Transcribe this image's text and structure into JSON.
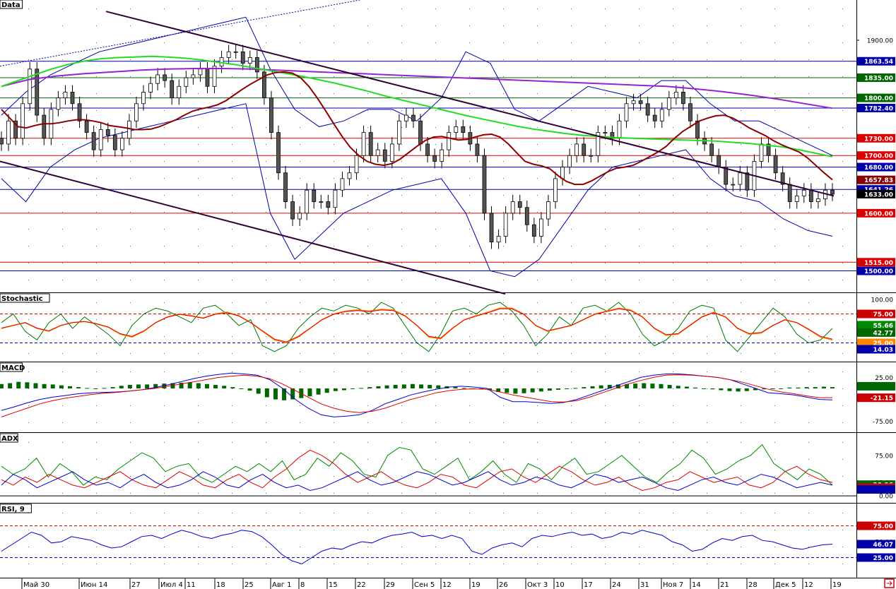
{
  "colors": {
    "up": "#ffffff",
    "down": "#555555",
    "bb": "#0000aa",
    "ma_fast": "#8b0000",
    "ma_mid": "#22dd22",
    "ma_slow": "#9922cc",
    "trend": "#330033",
    "hline_blue": "#0000aa",
    "hline_red": "#dd0000",
    "hline_green": "#006600",
    "k": "#007700",
    "d": "#ff8800",
    "macd": "#0000cc",
    "signal": "#dd0000",
    "hist": "#006600"
  },
  "x_ticks": [
    "Май 30",
    "Июн 14",
    "27",
    "Июл 4",
    "11",
    "18",
    "25",
    "Авг 1",
    "8",
    "15",
    "22",
    "29",
    "Сен 5",
    "12",
    "19",
    "26",
    "Окт 3",
    "10",
    "17",
    "24",
    "31",
    "Ноя 7",
    "14",
    "21",
    "28",
    "Дек 5",
    "12",
    "19"
  ],
  "chart_data": [
    {
      "type": "candlestick",
      "panel": "Data",
      "title": "Data",
      "ylim": [
        1470,
        1960
      ],
      "yticks": [
        1900
      ],
      "hlines": [
        {
          "value": 1863.54,
          "label": "1863.54",
          "color": "blue"
        },
        {
          "value": 1835,
          "label": "1835.00",
          "color": "green"
        },
        {
          "value": 1800,
          "label": "1800.00",
          "color": "green"
        },
        {
          "value": 1782.4,
          "label": "1782.40",
          "color": "blue"
        },
        {
          "value": 1730,
          "label": "1730.00",
          "color": "red"
        },
        {
          "value": 1700,
          "label": "1700.00",
          "color": "red"
        },
        {
          "value": 1680,
          "label": "1680.00",
          "color": "blue"
        },
        {
          "value": 1641.26,
          "label": "1641.26",
          "color": "blue"
        },
        {
          "value": 1600,
          "label": "1600.00",
          "color": "red"
        },
        {
          "value": 1515,
          "label": "1515.00",
          "color": "red"
        },
        {
          "value": 1500,
          "label": "1500.00",
          "color": "blue"
        }
      ],
      "tags": [
        {
          "value": 1657.83,
          "label": "1657.83",
          "bg": "#8b0000"
        },
        {
          "value": 1633,
          "label": "1633.00",
          "bg": "#000000"
        }
      ],
      "closes": [
        1720,
        1760,
        1730,
        1790,
        1850,
        1770,
        1730,
        1780,
        1800,
        1810,
        1790,
        1760,
        1740,
        1710,
        1745,
        1735,
        1710,
        1730,
        1760,
        1790,
        1810,
        1825,
        1840,
        1830,
        1800,
        1820,
        1835,
        1840,
        1850,
        1820,
        1855,
        1870,
        1880,
        1880,
        1860,
        1870,
        1845,
        1800,
        1740,
        1670,
        1620,
        1590,
        1600,
        1640,
        1620,
        1620,
        1610,
        1640,
        1660,
        1670,
        1700,
        1740,
        1700,
        1710,
        1690,
        1720,
        1760,
        1770,
        1760,
        1720,
        1700,
        1690,
        1710,
        1740,
        1750,
        1740,
        1720,
        1700,
        1600,
        1550,
        1560,
        1600,
        1620,
        1610,
        1580,
        1560,
        1590,
        1620,
        1660,
        1680,
        1700,
        1720,
        1700,
        1700,
        1740,
        1740,
        1730,
        1760,
        1790,
        1795,
        1790,
        1770,
        1760,
        1780,
        1800,
        1810,
        1790,
        1760,
        1730,
        1720,
        1700,
        1680,
        1650,
        1650,
        1670,
        1640,
        1690,
        1720,
        1700,
        1670,
        1650,
        1620,
        1630,
        1640,
        1620,
        1625,
        1640,
        1633
      ],
      "ma_fast": [
        1780,
        1765,
        1750,
        1748,
        1752,
        1755,
        1755,
        1757,
        1760,
        1762,
        1762,
        1760,
        1757,
        1752,
        1750,
        1748,
        1745,
        1745,
        1746,
        1750,
        1756,
        1762,
        1770,
        1777,
        1781,
        1784,
        1788,
        1795,
        1805,
        1815,
        1824,
        1832,
        1840,
        1844,
        1845,
        1843,
        1835,
        1820,
        1800,
        1778,
        1755,
        1733,
        1714,
        1700,
        1690,
        1685,
        1683,
        1686,
        1694,
        1705,
        1716,
        1726,
        1732,
        1733,
        1730,
        1727,
        1728,
        1732,
        1736,
        1737,
        1732,
        1720,
        1705,
        1690,
        1685,
        1682,
        1677,
        1665,
        1655,
        1650,
        1650,
        1656,
        1664,
        1672,
        1678,
        1680,
        1683,
        1690,
        1698,
        1706,
        1716,
        1730,
        1742,
        1751,
        1760,
        1765,
        1769,
        1770,
        1765,
        1757,
        1748,
        1741,
        1734,
        1725,
        1718,
        1712,
        1706,
        1696,
        1683,
        1670,
        1658
      ],
      "ma_mid": [
        1820,
        1830,
        1840,
        1850,
        1858,
        1864,
        1868,
        1870,
        1871,
        1872,
        1871,
        1869,
        1866,
        1862,
        1858,
        1853,
        1848,
        1843,
        1838,
        1832,
        1826,
        1819,
        1812,
        1804,
        1797,
        1790,
        1783,
        1776,
        1769,
        1763,
        1757,
        1751,
        1746,
        1742,
        1738,
        1735,
        1733,
        1731,
        1730,
        1729,
        1728,
        1727,
        1726,
        1725,
        1723,
        1721,
        1718,
        1715,
        1710,
        1704,
        1698
      ],
      "ma_slow": [
        1820,
        1832,
        1838,
        1842,
        1845,
        1848,
        1850,
        1851,
        1851,
        1850,
        1848,
        1846,
        1844,
        1842,
        1840,
        1838,
        1836,
        1834,
        1832,
        1830,
        1828,
        1826,
        1824,
        1822,
        1820,
        1816,
        1811,
        1805,
        1798,
        1790,
        1782
      ],
      "bb_upper": [
        1770,
        1810,
        1840,
        1860,
        1880,
        1890,
        1900,
        1910,
        1920,
        1930,
        1940,
        1850,
        1780,
        1750,
        1760,
        1780,
        1780,
        1760,
        1800,
        1880,
        1860,
        1780,
        1760,
        1790,
        1820,
        1810,
        1800,
        1830,
        1830,
        1790,
        1760,
        1760,
        1740,
        1720,
        1700
      ],
      "bb_lower": [
        1660,
        1620,
        1680,
        1710,
        1730,
        1740,
        1750,
        1760,
        1770,
        1780,
        1790,
        1600,
        1520,
        1560,
        1600,
        1620,
        1640,
        1650,
        1660,
        1600,
        1500,
        1490,
        1520,
        1580,
        1640,
        1680,
        1690,
        1700,
        1710,
        1660,
        1630,
        1620,
        1590,
        1570,
        1560
      ],
      "trend_upper": [
        1950,
        1630
      ],
      "trend_lower": [
        1690,
        1460
      ]
    },
    {
      "type": "line",
      "panel": "Stochastic",
      "title": "Stochastic",
      "ylim": [
        0,
        100
      ],
      "yticks": [
        100
      ],
      "levels": [
        {
          "value": 75,
          "color": "red"
        },
        {
          "value": 25,
          "color": "blue"
        }
      ],
      "tags": [
        {
          "value": 75,
          "label": "75.00",
          "bg": "#cc0000"
        },
        {
          "value": 55.6,
          "label": "55.66",
          "bg": "#008800"
        },
        {
          "value": 42.77,
          "label": "42.77",
          "bg": "#006600"
        },
        {
          "value": 25,
          "label": "25.00",
          "bg": "#ff8800"
        },
        {
          "value": 14,
          "label": "14.03",
          "bg": "#0000aa"
        }
      ],
      "k": [
        60,
        75,
        45,
        30,
        60,
        75,
        50,
        70,
        55,
        40,
        20,
        55,
        75,
        85,
        80,
        70,
        60,
        85,
        90,
        75,
        55,
        65,
        20,
        10,
        20,
        50,
        70,
        85,
        80,
        90,
        85,
        75,
        95,
        85,
        55,
        25,
        10,
        40,
        80,
        85,
        75,
        90,
        95,
        80,
        55,
        20,
        40,
        70,
        55,
        85,
        90,
        80,
        95,
        75,
        40,
        20,
        30,
        50,
        80,
        90,
        85,
        30,
        10,
        35,
        60,
        85,
        70,
        40,
        25,
        30,
        50
      ],
      "d": [
        50,
        55,
        60,
        50,
        45,
        55,
        60,
        62,
        58,
        52,
        40,
        35,
        45,
        60,
        70,
        75,
        72,
        68,
        75,
        78,
        72,
        60,
        45,
        30,
        25,
        35,
        50,
        65,
        75,
        80,
        82,
        80,
        83,
        82,
        72,
        55,
        35,
        32,
        50,
        65,
        72,
        78,
        85,
        85,
        75,
        55,
        45,
        50,
        55,
        65,
        75,
        80,
        85,
        82,
        70,
        50,
        38,
        40,
        55,
        70,
        78,
        70,
        50,
        40,
        42,
        55,
        65,
        60,
        48,
        35,
        30
      ]
    },
    {
      "type": "bar",
      "panel": "MACD",
      "title": "MACD",
      "ylim": [
        -90,
        45
      ],
      "yticks": [
        25,
        -75
      ],
      "tags": [
        {
          "value": -21.15,
          "label": "-21.15",
          "bg": "#cc0000"
        },
        {
          "value": 5,
          "label": "",
          "bg": "#006600"
        }
      ],
      "hist": [
        10,
        12,
        15,
        14,
        12,
        10,
        9,
        7,
        5,
        3,
        1,
        -1,
        1,
        3,
        6,
        8,
        9,
        9,
        10,
        11,
        12,
        13,
        14,
        12,
        10,
        8,
        6,
        3,
        -1,
        -5,
        -12,
        -20,
        -25,
        -27,
        -25,
        -22,
        -18,
        -14,
        -10,
        -6,
        -4,
        -1,
        1,
        3,
        5,
        7,
        8,
        9,
        10,
        9,
        8,
        7,
        5,
        3,
        1,
        0,
        -1,
        -4,
        -8,
        -10,
        -12,
        -11,
        -9,
        -7,
        -5,
        -3,
        -1,
        1,
        3,
        5,
        7,
        8,
        9,
        10,
        11,
        12,
        11,
        10,
        8,
        6,
        4,
        2,
        0,
        -2,
        -4,
        -6,
        -7,
        -6,
        -4,
        -2,
        -1,
        0,
        2,
        2,
        3,
        3,
        4,
        3
      ],
      "macd": [
        -50,
        -42,
        -33,
        -25,
        -20,
        -16,
        -12,
        -10,
        -9,
        -8,
        -6,
        -3,
        2,
        8,
        15,
        22,
        28,
        32,
        35,
        33,
        30,
        20,
        0,
        -25,
        -45,
        -60,
        -65,
        -63,
        -60,
        -50,
        -35,
        -25,
        -15,
        -8,
        -2,
        3,
        5,
        3,
        0,
        -20,
        -30,
        -30,
        -32,
        -34,
        -32,
        -25,
        -15,
        -5,
        5,
        15,
        25,
        30,
        33,
        33,
        31,
        28,
        25,
        20,
        10,
        0,
        -10,
        -12,
        -15,
        -20,
        -25,
        -26
      ],
      "signal": [
        -65,
        -55,
        -45,
        -35,
        -28,
        -22,
        -18,
        -14,
        -11,
        -9,
        -6,
        -3,
        0,
        5,
        10,
        15,
        20,
        25,
        28,
        30,
        28,
        22,
        10,
        -5,
        -20,
        -35,
        -45,
        -52,
        -55,
        -52,
        -45,
        -35,
        -25,
        -18,
        -10,
        -5,
        -2,
        -1,
        -2,
        -8,
        -15,
        -20,
        -25,
        -30,
        -31,
        -28,
        -20,
        -10,
        0,
        10,
        18,
        25,
        30,
        31,
        30,
        28,
        25,
        20,
        14,
        6,
        -2,
        -8,
        -12,
        -17,
        -21,
        -21
      ]
    },
    {
      "type": "line",
      "panel": "ADX",
      "title": "ADX",
      "ylim": [
        -5,
        105
      ],
      "yticks": [
        75,
        25,
        0
      ],
      "tags": [
        {
          "value": 20.96,
          "label": "20.96",
          "bg": "#006600"
        },
        {
          "value": 15.4,
          "label": "",
          "bg": "#cc0000"
        },
        {
          "value": 12,
          "label": "",
          "bg": "#0000aa"
        }
      ],
      "adx": [
        55,
        40,
        50,
        70,
        35,
        60,
        45,
        20,
        35,
        30,
        50,
        65,
        80,
        70,
        45,
        55,
        60,
        35,
        25,
        40,
        55,
        45,
        60,
        45,
        65,
        30,
        40,
        70,
        55,
        80,
        65,
        40,
        35,
        75,
        90,
        85,
        50,
        40,
        55,
        70,
        30,
        45,
        65,
        40,
        25,
        60,
        50,
        30,
        55,
        70,
        40,
        45,
        60,
        75,
        55,
        35,
        25,
        45,
        60,
        85,
        70,
        40,
        50,
        65,
        75,
        95,
        60,
        45,
        30,
        50,
        40,
        20
      ],
      "pdi": [
        30,
        20,
        35,
        25,
        40,
        30,
        20,
        15,
        25,
        35,
        45,
        30,
        20,
        15,
        30,
        45,
        35,
        20,
        15,
        30,
        40,
        25,
        15,
        35,
        50,
        70,
        85,
        75,
        60,
        40,
        25,
        35,
        45,
        30,
        20,
        15,
        25,
        40,
        35,
        20,
        15,
        30,
        45,
        50,
        35,
        25,
        40,
        55,
        45,
        30,
        20,
        25,
        35,
        20,
        10,
        15,
        25,
        30,
        45,
        35,
        25,
        30,
        35,
        20,
        15,
        25,
        45,
        55,
        40,
        30,
        25
      ],
      "mdi": [
        20,
        40,
        30,
        15,
        25,
        35,
        45,
        30,
        20,
        25,
        15,
        30,
        40,
        25,
        15,
        20,
        30,
        45,
        35,
        20,
        15,
        30,
        40,
        25,
        15,
        20,
        10,
        15,
        25,
        35,
        45,
        30,
        20,
        25,
        35,
        45,
        40,
        30,
        20,
        25,
        35,
        45,
        30,
        20,
        25,
        35,
        30,
        20,
        15,
        25,
        40,
        35,
        25,
        30,
        35,
        25,
        15,
        10,
        20,
        30,
        35,
        25,
        20,
        30,
        40,
        35,
        25,
        15,
        20,
        25,
        20
      ]
    },
    {
      "type": "line",
      "panel": "RSI, 9",
      "title": "RSI, 9",
      "ylim": [
        0,
        100
      ],
      "yticks": [
        50
      ],
      "levels": [
        {
          "value": 75,
          "color": "red"
        },
        {
          "value": 25,
          "color": "blue"
        }
      ],
      "tags": [
        {
          "value": 75,
          "label": "75.00",
          "bg": "#cc0000"
        },
        {
          "value": 46.07,
          "label": "46.07",
          "bg": "#0000aa"
        },
        {
          "value": 25,
          "label": "25.00",
          "bg": "#0000aa"
        }
      ],
      "rsi": [
        35,
        45,
        55,
        65,
        60,
        48,
        50,
        58,
        55,
        52,
        45,
        40,
        42,
        50,
        58,
        60,
        55,
        62,
        68,
        64,
        58,
        55,
        60,
        63,
        68,
        66,
        58,
        45,
        30,
        20,
        15,
        25,
        35,
        40,
        38,
        45,
        50,
        48,
        55,
        60,
        62,
        65,
        58,
        60,
        55,
        60,
        55,
        35,
        30,
        40,
        45,
        48,
        42,
        55,
        60,
        58,
        62,
        65,
        60,
        62,
        55,
        58,
        65,
        62,
        68,
        64,
        60,
        50,
        45,
        35,
        38,
        48,
        55,
        52,
        58,
        60,
        52,
        50,
        45,
        40,
        38,
        42,
        45,
        46.07
      ]
    }
  ]
}
